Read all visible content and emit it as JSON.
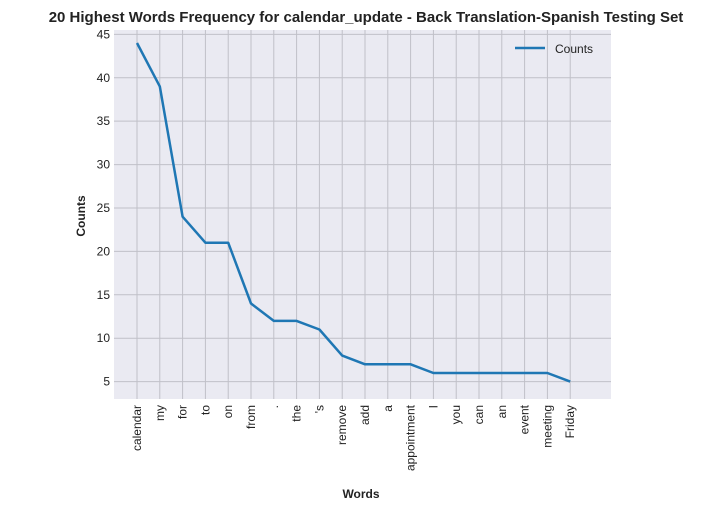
{
  "chart_data": {
    "type": "line",
    "title": "20 Highest Words Frequency for calendar_update - Back Translation-Spanish Testing Set",
    "xlabel": "Words",
    "ylabel": "Counts",
    "categories": [
      "calendar",
      "my",
      "for",
      "to",
      "on",
      "from",
      ".",
      "the",
      "'s",
      "remove",
      "add",
      "a",
      "appointment",
      "I",
      "you",
      "can",
      "an",
      "event",
      "meeting",
      "Friday"
    ],
    "series": [
      {
        "name": "Counts",
        "values": [
          44,
          39,
          24,
          21,
          21,
          14,
          12,
          12,
          11,
          8,
          7,
          7,
          7,
          6,
          6,
          6,
          6,
          6,
          6,
          5
        ],
        "color": "#1f77b4"
      }
    ],
    "ylim": [
      3,
      45.5
    ],
    "yticks": [
      5,
      10,
      15,
      20,
      25,
      30,
      35,
      40,
      45
    ],
    "grid": true,
    "legend_position": "top-right",
    "background_color": "#eaeaf2",
    "grid_color": "#c0c0c8"
  }
}
